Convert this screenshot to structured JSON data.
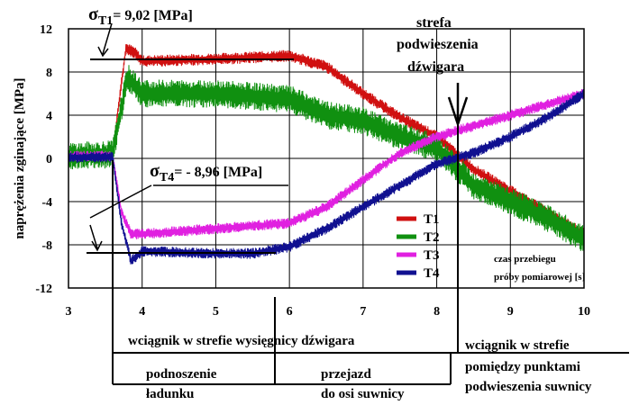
{
  "chart_data": {
    "type": "line",
    "ylabel": "naprężenia zginające [MPa]",
    "xlabel": "czas przebiegu próby pomiarowej [s]",
    "xlabel_lines": [
      "czas przebiegu",
      "próby pomiarowej [s]"
    ],
    "xlim": [
      3,
      10
    ],
    "ylim": [
      -12,
      12
    ],
    "x_ticks": [
      3,
      4,
      5,
      6,
      7,
      8,
      9,
      10
    ],
    "x_tick_labels": [
      "3",
      "4",
      "5",
      "6",
      "7",
      "8",
      "9",
      "10"
    ],
    "y_ticks": [
      12,
      8,
      4,
      0,
      -4,
      -8,
      -12
    ],
    "y_tick_labels": [
      "12",
      "8",
      "4",
      "0",
      "-4",
      "-8",
      "-12"
    ],
    "grid": true,
    "legend_position": "right",
    "series": [
      {
        "name": "T1",
        "color": "#d01010",
        "noise": 0.55,
        "points": [
          [
            3.0,
            0.2
          ],
          [
            3.6,
            0.3
          ],
          [
            3.7,
            6.0
          ],
          [
            3.78,
            10.2
          ],
          [
            3.9,
            9.8
          ],
          [
            4.0,
            9.0
          ],
          [
            5.0,
            9.2
          ],
          [
            6.0,
            9.5
          ],
          [
            6.5,
            8.5
          ],
          [
            7.0,
            6.0
          ],
          [
            7.5,
            3.8
          ],
          [
            8.0,
            2.0
          ],
          [
            8.5,
            -1.0
          ],
          [
            9.0,
            -3.0
          ],
          [
            9.5,
            -5.0
          ],
          [
            10.0,
            -7.0
          ]
        ]
      },
      {
        "name": "T2",
        "color": "#109010",
        "noise": 1.3,
        "points": [
          [
            3.0,
            0.2
          ],
          [
            3.6,
            0.4
          ],
          [
            3.7,
            4.0
          ],
          [
            3.8,
            7.5
          ],
          [
            4.0,
            6.0
          ],
          [
            5.0,
            6.0
          ],
          [
            6.0,
            5.5
          ],
          [
            6.5,
            4.0
          ],
          [
            7.0,
            3.5
          ],
          [
            7.5,
            2.0
          ],
          [
            8.0,
            1.0
          ],
          [
            8.5,
            -2.5
          ],
          [
            9.0,
            -4.0
          ],
          [
            9.5,
            -5.5
          ],
          [
            10.0,
            -7.5
          ]
        ]
      },
      {
        "name": "T3",
        "color": "#e020e0",
        "noise": 0.5,
        "points": [
          [
            3.0,
            0.2
          ],
          [
            3.6,
            0.2
          ],
          [
            3.72,
            -5.0
          ],
          [
            3.85,
            -7.0
          ],
          [
            4.0,
            -7.0
          ],
          [
            5.0,
            -6.5
          ],
          [
            6.0,
            -6.0
          ],
          [
            6.5,
            -4.5
          ],
          [
            7.0,
            -2.0
          ],
          [
            7.5,
            0.5
          ],
          [
            8.0,
            2.0
          ],
          [
            8.5,
            3.0
          ],
          [
            9.0,
            4.0
          ],
          [
            9.5,
            5.0
          ],
          [
            10.0,
            6.0
          ]
        ]
      },
      {
        "name": "T4",
        "color": "#101090",
        "noise": 0.5,
        "points": [
          [
            3.0,
            0.1
          ],
          [
            3.6,
            0.1
          ],
          [
            3.72,
            -6.0
          ],
          [
            3.85,
            -9.5
          ],
          [
            4.0,
            -8.6
          ],
          [
            5.0,
            -8.8
          ],
          [
            5.5,
            -8.8
          ],
          [
            6.0,
            -8.2
          ],
          [
            6.5,
            -6.5
          ],
          [
            7.0,
            -4.5
          ],
          [
            7.5,
            -2.5
          ],
          [
            8.0,
            -0.5
          ],
          [
            8.5,
            0.5
          ],
          [
            9.0,
            2.0
          ],
          [
            9.5,
            3.8
          ],
          [
            10.0,
            6.0
          ]
        ]
      }
    ]
  },
  "annotations": {
    "sigma_t1": {
      "symbol": "σ",
      "sub": "T1",
      "value": "=  9,02 [MPa]"
    },
    "sigma_t4": {
      "symbol": "σ",
      "sub": "T4",
      "value": "=  - 8,96 [MPa]"
    },
    "strefa": [
      "strefa",
      "podwieszenia",
      "dźwigara"
    ],
    "zone_boom": "wciągnik w strefie wysięgnicy dźwigara",
    "zone_between": [
      "wciągnik w strefie",
      "pomiędzy punktami",
      "podwieszenia suwnicy"
    ],
    "lift": [
      "podnoszenie",
      "ładunku"
    ],
    "travel": [
      "przejazd",
      "do osi suwnicy"
    ]
  }
}
